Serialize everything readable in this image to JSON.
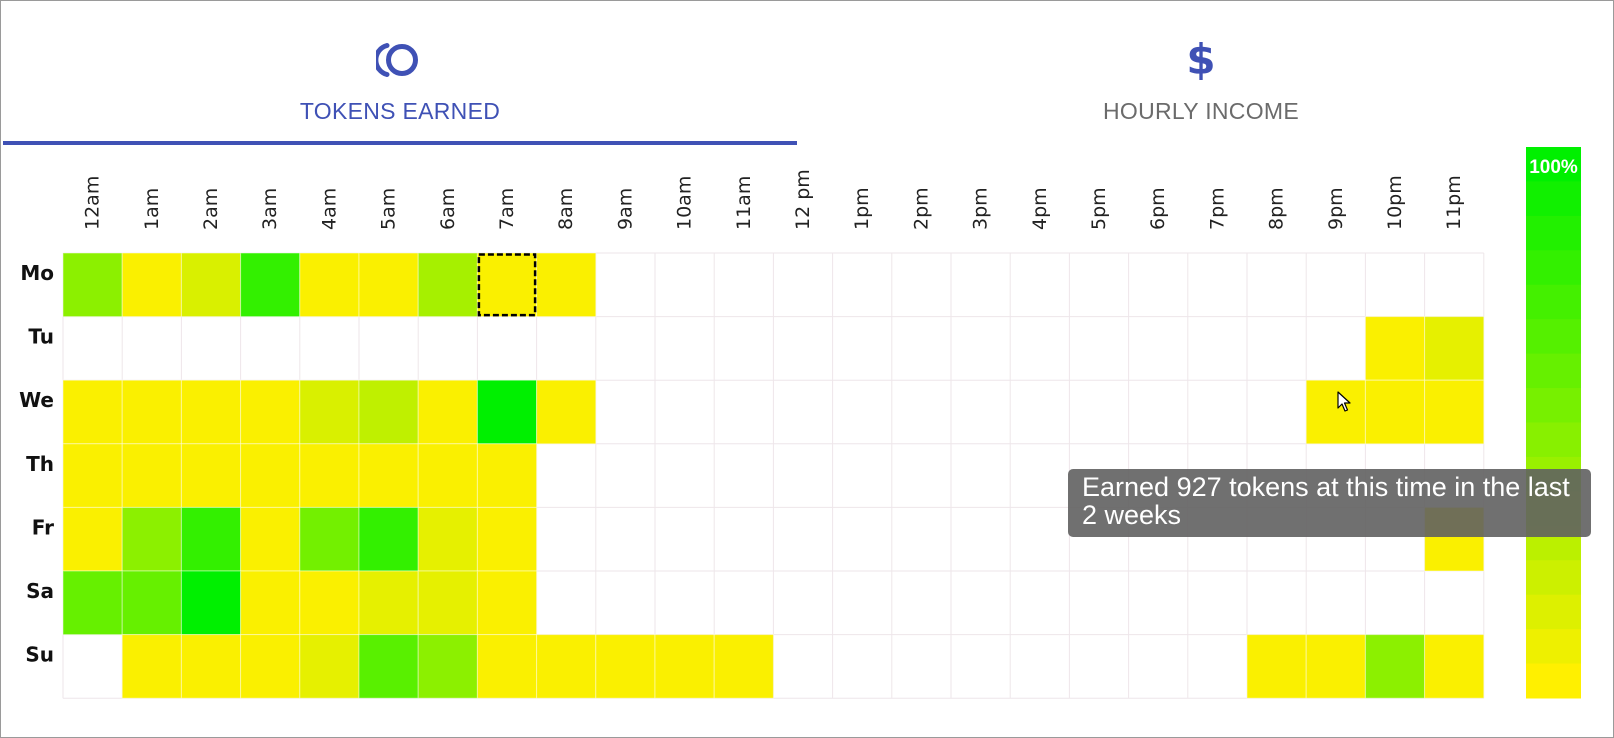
{
  "tabs": [
    {
      "label": "TOKENS EARNED",
      "icon": "tokens-icon",
      "active": true,
      "color": "#3f51b5"
    },
    {
      "label": "HOURLY INCOME",
      "icon": "dollar-icon",
      "active": false,
      "color": "#6b6b6b"
    }
  ],
  "tab_icons": {
    "dollar_glyph": "$"
  },
  "tooltip": {
    "text": "Earned 927 tokens at this time in the last 2 weeks"
  },
  "legend": {
    "max_label": "100%"
  },
  "chart_data": {
    "type": "heatmap",
    "hours": [
      "12am",
      "1am",
      "2am",
      "3am",
      "4am",
      "5am",
      "6am",
      "7am",
      "8am",
      "9am",
      "10am",
      "11am",
      "12 pm",
      "1pm",
      "2pm",
      "3pm",
      "4pm",
      "5pm",
      "6pm",
      "7pm",
      "8pm",
      "9pm",
      "10pm",
      "11pm"
    ],
    "days": [
      "Mo",
      "Tu",
      "We",
      "Th",
      "Fr",
      "Sa",
      "Su"
    ],
    "color_scale": {
      "low": "#fff000",
      "high": "#00f000",
      "empty": "#ffffff"
    },
    "grid": true,
    "legend_placement": "right",
    "selected_cell": {
      "day": "Mo",
      "hour": "7am"
    },
    "values": [
      [
        0.45,
        0.02,
        0.15,
        0.8,
        0.02,
        0.02,
        0.35,
        0.02,
        0.02,
        null,
        null,
        null,
        null,
        null,
        null,
        null,
        null,
        null,
        null,
        null,
        null,
        null,
        null,
        null
      ],
      [
        null,
        null,
        null,
        null,
        null,
        null,
        null,
        null,
        null,
        null,
        null,
        null,
        null,
        null,
        null,
        null,
        null,
        null,
        null,
        null,
        null,
        null,
        0.02,
        0.1
      ],
      [
        0.02,
        0.02,
        0.02,
        0.02,
        0.15,
        0.25,
        0.02,
        1.0,
        0.02,
        null,
        null,
        null,
        null,
        null,
        null,
        null,
        null,
        null,
        null,
        null,
        null,
        0.02,
        0.02,
        0.02
      ],
      [
        0.02,
        0.02,
        0.02,
        0.02,
        0.02,
        0.02,
        0.02,
        0.02,
        null,
        null,
        null,
        null,
        null,
        null,
        null,
        null,
        null,
        null,
        null,
        null,
        null,
        null,
        null,
        null
      ],
      [
        0.02,
        0.45,
        0.8,
        0.02,
        0.55,
        0.8,
        0.1,
        0.02,
        null,
        null,
        null,
        null,
        null,
        null,
        null,
        null,
        null,
        null,
        null,
        null,
        null,
        null,
        null,
        0.02
      ],
      [
        0.6,
        0.6,
        1.0,
        0.02,
        0.02,
        0.1,
        0.1,
        0.02,
        null,
        null,
        null,
        null,
        null,
        null,
        null,
        null,
        null,
        null,
        null,
        null,
        null,
        null,
        null,
        null
      ],
      [
        null,
        0.02,
        0.02,
        0.02,
        0.1,
        0.65,
        0.45,
        0.02,
        0.02,
        0.02,
        0.02,
        0.02,
        null,
        null,
        null,
        null,
        null,
        null,
        null,
        null,
        0.02,
        0.02,
        0.45,
        0.02
      ]
    ]
  }
}
